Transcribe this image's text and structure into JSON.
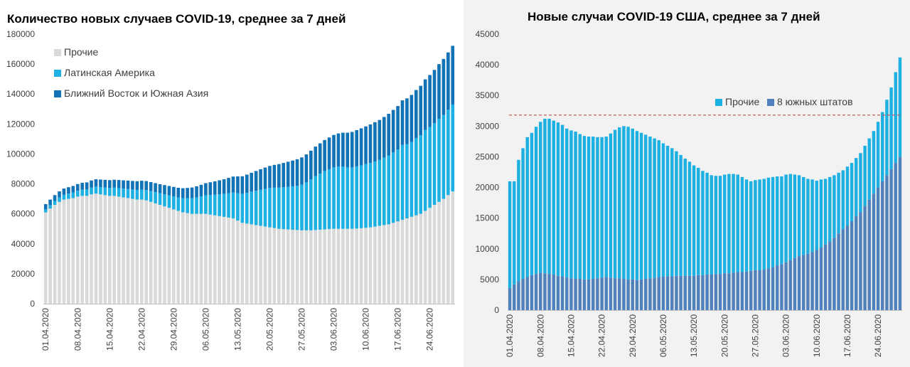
{
  "chart_data": [
    {
      "type": "bar",
      "stacked": true,
      "title": "Количество новых случаев COVID-19, среднее за 7 дней",
      "xlabel": "",
      "ylabel": "",
      "ylim": [
        0,
        180000
      ],
      "yticks": [
        0,
        20000,
        40000,
        60000,
        80000,
        100000,
        120000,
        140000,
        160000,
        180000
      ],
      "x": [
        "01.04.2020",
        "02.04.2020",
        "03.04.2020",
        "04.04.2020",
        "05.04.2020",
        "06.04.2020",
        "07.04.2020",
        "08.04.2020",
        "09.04.2020",
        "10.04.2020",
        "11.04.2020",
        "12.04.2020",
        "13.04.2020",
        "14.04.2020",
        "15.04.2020",
        "16.04.2020",
        "17.04.2020",
        "18.04.2020",
        "19.04.2020",
        "20.04.2020",
        "21.04.2020",
        "22.04.2020",
        "23.04.2020",
        "24.04.2020",
        "25.04.2020",
        "26.04.2020",
        "27.04.2020",
        "28.04.2020",
        "29.04.2020",
        "30.04.2020",
        "01.05.2020",
        "02.05.2020",
        "03.05.2020",
        "04.05.2020",
        "05.05.2020",
        "06.05.2020",
        "07.05.2020",
        "08.05.2020",
        "09.05.2020",
        "10.05.2020",
        "11.05.2020",
        "12.05.2020",
        "13.05.2020",
        "14.05.2020",
        "15.05.2020",
        "16.05.2020",
        "17.05.2020",
        "18.05.2020",
        "19.05.2020",
        "20.05.2020",
        "21.05.2020",
        "22.05.2020",
        "23.05.2020",
        "24.05.2020",
        "25.05.2020",
        "26.05.2020",
        "27.05.2020",
        "28.05.2020",
        "29.05.2020",
        "30.05.2020",
        "31.05.2020",
        "01.06.2020",
        "02.06.2020",
        "03.06.2020",
        "04.06.2020",
        "05.06.2020",
        "06.06.2020",
        "07.06.2020",
        "08.06.2020",
        "09.06.2020",
        "10.06.2020",
        "11.06.2020",
        "12.06.2020",
        "13.06.2020",
        "14.06.2020",
        "15.06.2020",
        "16.06.2020",
        "17.06.2020",
        "18.06.2020",
        "19.06.2020",
        "20.06.2020",
        "21.06.2020",
        "22.06.2020",
        "23.06.2020",
        "24.06.2020",
        "25.06.2020",
        "26.06.2020",
        "27.06.2020",
        "28.06.2020",
        "29.06.2020"
      ],
      "tick_labels": [
        "01.04.2020",
        "08.04.2020",
        "15.04.2020",
        "22.04.2020",
        "29.04.2020",
        "06.05.2020",
        "13.05.2020",
        "20.05.2020",
        "27.05.2020",
        "03.06.2020",
        "10.06.2020",
        "17.06.2020",
        "24.06.2020"
      ],
      "legend_position": "top-left",
      "series": [
        {
          "name": "Прочие",
          "color": "#d9d9d9",
          "values": [
            61000,
            63500,
            66000,
            68000,
            69500,
            70000,
            70500,
            71500,
            72000,
            72000,
            73000,
            73500,
            73000,
            72500,
            72000,
            72000,
            71500,
            71000,
            70500,
            70000,
            69500,
            69500,
            69000,
            68000,
            67000,
            66000,
            65000,
            64000,
            63000,
            62000,
            61000,
            60500,
            60000,
            60000,
            60000,
            60000,
            59500,
            59000,
            58500,
            58000,
            57500,
            57000,
            55500,
            54000,
            53500,
            53000,
            52500,
            52000,
            51500,
            51000,
            50500,
            50000,
            49800,
            49600,
            49400,
            49200,
            49000,
            49000,
            49000,
            49200,
            49400,
            49600,
            49800,
            50000,
            50000,
            50000,
            50000,
            50000,
            50200,
            50400,
            50700,
            51000,
            51500,
            52000,
            52500,
            53000,
            54000,
            55000,
            56000,
            57000,
            58000,
            59000,
            60000,
            62000,
            64000,
            66000,
            68000,
            70000,
            72500,
            75000
          ]
        },
        {
          "name": "Латинская Америка",
          "color": "#1db0e2",
          "values": [
            2000,
            2300,
            2600,
            2900,
            3200,
            3500,
            3700,
            3900,
            4100,
            4300,
            4500,
            4700,
            4900,
            5100,
            5300,
            5500,
            5700,
            5900,
            6100,
            6300,
            6500,
            6700,
            6900,
            7200,
            7500,
            7800,
            8100,
            8400,
            8700,
            9000,
            9500,
            10000,
            10500,
            11000,
            11700,
            12400,
            13100,
            13800,
            14600,
            15400,
            16300,
            17200,
            18300,
            19400,
            20500,
            21700,
            22900,
            24100,
            25200,
            26300,
            27000,
            27500,
            28000,
            28500,
            29000,
            29500,
            30500,
            32000,
            34000,
            36000,
            37500,
            39000,
            40000,
            41000,
            41500,
            41500,
            41000,
            41000,
            41500,
            42000,
            42500,
            43000,
            43500,
            44000,
            45000,
            46000,
            47000,
            48000,
            50000,
            49500,
            50000,
            51500,
            52500,
            54000,
            54000,
            54500,
            55500,
            56000,
            57000,
            58000
          ]
        },
        {
          "name": "Ближний Восток и Южная Азия",
          "color": "#1272b6",
          "values": [
            3500,
            3700,
            3900,
            4100,
            4200,
            4300,
            4400,
            4500,
            4600,
            4700,
            4800,
            4900,
            5000,
            5100,
            5200,
            5300,
            5400,
            5500,
            5600,
            5700,
            5800,
            5900,
            6000,
            6000,
            6000,
            6000,
            6100,
            6200,
            6300,
            6400,
            6600,
            6800,
            7100,
            7400,
            7700,
            8100,
            8500,
            8900,
            9300,
            9700,
            10200,
            10700,
            11200,
            11700,
            12200,
            12700,
            13200,
            13700,
            14200,
            14700,
            15200,
            15700,
            16200,
            16700,
            17200,
            17700,
            18200,
            18700,
            19200,
            19700,
            20200,
            20700,
            21200,
            21700,
            22200,
            22700,
            23200,
            23700,
            24200,
            24700,
            25200,
            25700,
            26200,
            26700,
            27200,
            27800,
            28400,
            29000,
            29800,
            30600,
            31400,
            32200,
            33000,
            33800,
            34700,
            35600,
            36500,
            37400,
            38300,
            39200
          ]
        }
      ]
    },
    {
      "type": "bar",
      "stacked": true,
      "title": "Новые случаи COVID-19  США, среднее за 7 дней",
      "xlabel": "",
      "ylabel": "",
      "ylim": [
        0,
        45000
      ],
      "yticks": [
        0,
        5000,
        10000,
        15000,
        20000,
        25000,
        30000,
        35000,
        40000,
        45000
      ],
      "x": [
        "01.04.2020",
        "02.04.2020",
        "03.04.2020",
        "04.04.2020",
        "05.04.2020",
        "06.04.2020",
        "07.04.2020",
        "08.04.2020",
        "09.04.2020",
        "10.04.2020",
        "11.04.2020",
        "12.04.2020",
        "13.04.2020",
        "14.04.2020",
        "15.04.2020",
        "16.04.2020",
        "17.04.2020",
        "18.04.2020",
        "19.04.2020",
        "20.04.2020",
        "21.04.2020",
        "22.04.2020",
        "23.04.2020",
        "24.04.2020",
        "25.04.2020",
        "26.04.2020",
        "27.04.2020",
        "28.04.2020",
        "29.04.2020",
        "30.04.2020",
        "01.05.2020",
        "02.05.2020",
        "03.05.2020",
        "04.05.2020",
        "05.05.2020",
        "06.05.2020",
        "07.05.2020",
        "08.05.2020",
        "09.05.2020",
        "10.05.2020",
        "11.05.2020",
        "12.05.2020",
        "13.05.2020",
        "14.05.2020",
        "15.05.2020",
        "16.05.2020",
        "17.05.2020",
        "18.05.2020",
        "19.05.2020",
        "20.05.2020",
        "21.05.2020",
        "22.05.2020",
        "23.05.2020",
        "24.05.2020",
        "25.05.2020",
        "26.05.2020",
        "27.05.2020",
        "28.05.2020",
        "29.05.2020",
        "30.05.2020",
        "31.05.2020",
        "01.06.2020",
        "02.06.2020",
        "03.06.2020",
        "04.06.2020",
        "05.06.2020",
        "06.06.2020",
        "07.06.2020",
        "08.06.2020",
        "09.06.2020",
        "10.06.2020",
        "11.06.2020",
        "12.06.2020",
        "13.06.2020",
        "14.06.2020",
        "15.06.2020",
        "16.06.2020",
        "17.06.2020",
        "18.06.2020",
        "19.06.2020",
        "20.06.2020",
        "21.06.2020",
        "22.06.2020",
        "23.06.2020",
        "24.06.2020",
        "25.06.2020",
        "26.06.2020",
        "27.06.2020",
        "28.06.2020",
        "29.06.2020"
      ],
      "tick_labels": [
        "01.04.2020",
        "08.04.2020",
        "15.04.2020",
        "22.04.2020",
        "29.04.2020",
        "06.05.2020",
        "13.05.2020",
        "20.05.2020",
        "27.05.2020",
        "03.06.2020",
        "10.06.2020",
        "17.06.2020",
        "24.06.2020"
      ],
      "legend_position": "top-right",
      "reference_line": 31800,
      "series": [
        {
          "name": "8 южных штатов",
          "color": "#4f81bd",
          "values": [
            3600,
            4200,
            4700,
            5100,
            5400,
            5700,
            5900,
            6100,
            6000,
            5900,
            5800,
            5600,
            5500,
            5300,
            5200,
            5100,
            5100,
            5000,
            5000,
            5100,
            5200,
            5300,
            5400,
            5300,
            5200,
            5200,
            5100,
            5000,
            5000,
            4900,
            5000,
            5100,
            5200,
            5300,
            5400,
            5500,
            5500,
            5500,
            5600,
            5600,
            5600,
            5600,
            5600,
            5700,
            5700,
            5800,
            5800,
            5900,
            5900,
            6000,
            6000,
            6100,
            6200,
            6200,
            6300,
            6400,
            6500,
            6500,
            6600,
            6800,
            7000,
            7300,
            7500,
            7800,
            8200,
            8500,
            8800,
            9000,
            9200,
            9500,
            9800,
            10200,
            10700,
            11200,
            11800,
            12500,
            13200,
            13800,
            14500,
            15300,
            16000,
            17000,
            18000,
            19000,
            20000,
            21000,
            22000,
            23000,
            24000,
            25000
          ]
        },
        {
          "name": "Прочие",
          "color": "#1db0e2",
          "values": [
            17400,
            16800,
            19800,
            21300,
            22800,
            23200,
            24000,
            24600,
            25200,
            25300,
            25100,
            25000,
            24700,
            24300,
            24100,
            24000,
            23600,
            23400,
            23300,
            23200,
            23000,
            22900,
            22900,
            23500,
            24200,
            24600,
            24900,
            24900,
            24600,
            24300,
            23900,
            23500,
            23100,
            22700,
            22300,
            21700,
            21300,
            20900,
            20300,
            19700,
            19100,
            18600,
            18000,
            17500,
            17000,
            16600,
            16200,
            16000,
            16000,
            16100,
            16200,
            16100,
            15900,
            15500,
            15000,
            14600,
            14700,
            14800,
            14800,
            14800,
            14700,
            14500,
            14300,
            14300,
            14000,
            13600,
            13200,
            12700,
            12200,
            11800,
            11300,
            11100,
            10700,
            10500,
            10200,
            9900,
            9600,
            9600,
            9500,
            9500,
            9600,
            9800,
            10000,
            10200,
            10700,
            11300,
            12300,
            13300,
            14800,
            16200
          ]
        }
      ]
    }
  ]
}
